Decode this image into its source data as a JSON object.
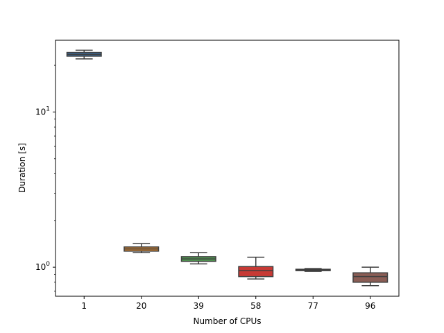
{
  "chart_data": {
    "type": "box",
    "title": "",
    "xlabel": "Number of CPUs",
    "ylabel": "Duration [s]",
    "yscale": "log",
    "ylim": [
      0.65,
      29
    ],
    "yticks": [
      {
        "value": 1,
        "label": "10^0"
      },
      {
        "value": 10,
        "label": "10^1"
      }
    ],
    "grid": false,
    "categories": [
      "1",
      "20",
      "39",
      "58",
      "77",
      "96"
    ],
    "boxes": [
      {
        "category": "1",
        "whisker_low": 22.0,
        "q1": 22.9,
        "median": 23.5,
        "q3": 24.2,
        "whisker_high": 25.0,
        "color": "#3a6b9a"
      },
      {
        "category": "20",
        "whisker_low": 1.24,
        "q1": 1.27,
        "median": 1.31,
        "q3": 1.35,
        "whisker_high": 1.42,
        "color": "#e08a2e"
      },
      {
        "category": "39",
        "whisker_low": 1.05,
        "q1": 1.09,
        "median": 1.13,
        "q3": 1.17,
        "whisker_high": 1.24,
        "color": "#4f8f4f"
      },
      {
        "category": "58",
        "whisker_low": 0.84,
        "q1": 0.87,
        "median": 0.95,
        "q3": 1.01,
        "whisker_high": 1.16,
        "color": "#c73a35"
      },
      {
        "category": "77",
        "whisker_low": 0.94,
        "q1": 0.95,
        "median": 0.96,
        "q3": 0.97,
        "whisker_high": 0.98,
        "color": "#8c6fae"
      },
      {
        "category": "96",
        "whisker_low": 0.76,
        "q1": 0.8,
        "median": 0.87,
        "q3": 0.92,
        "whisker_high": 1.0,
        "color": "#8a5d55"
      }
    ]
  }
}
